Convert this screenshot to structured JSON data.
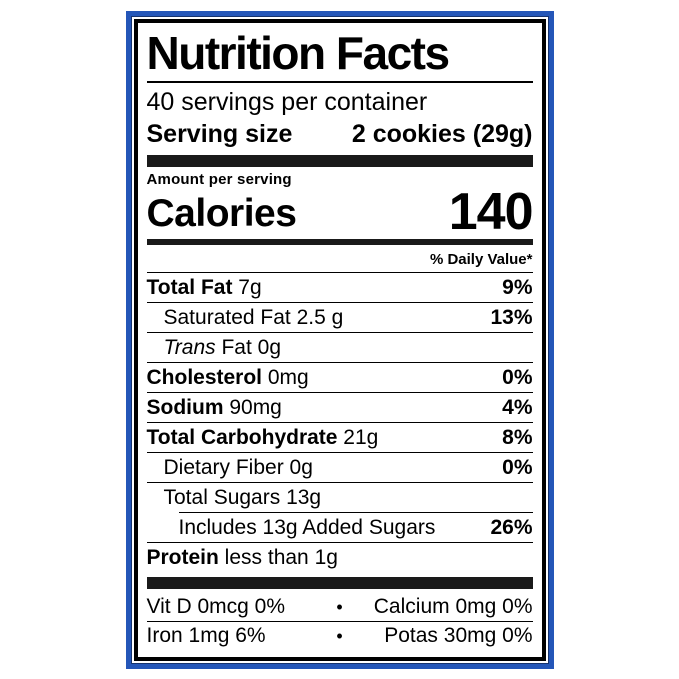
{
  "label": {
    "title": "Nutrition Facts",
    "servings_per_container": "40 servings per container",
    "serving_size": {
      "label": "Serving size",
      "value": "2 cookies (29g)"
    },
    "calories": {
      "eyebrow": "Amount per serving",
      "label": "Calories",
      "value": "140"
    },
    "daily_value_header": "% Daily Value*",
    "rows": [
      {
        "bold": "Total Fat",
        "rest": " 7g",
        "dv": "9%"
      },
      {
        "bold": "",
        "rest": "Saturated Fat 2.5 g",
        "dv": "13%"
      },
      {
        "italic": "Trans",
        "rest": " Fat 0g",
        "dv": ""
      },
      {
        "bold": "Cholesterol",
        "rest": " 0mg",
        "dv": "0%"
      },
      {
        "bold": "Sodium",
        "rest": " 90mg",
        "dv": "4%"
      },
      {
        "bold": "Total Carbohydrate",
        "rest": " 21g",
        "dv": "8%"
      },
      {
        "bold": "",
        "rest": "Dietary Fiber 0g",
        "dv": "0%"
      },
      {
        "bold": "",
        "rest": "Total Sugars 13g",
        "dv": ""
      },
      {
        "bold": "",
        "rest": "Includes 13g Added Sugars",
        "dv": "26%"
      },
      {
        "bold": "Protein",
        "rest": " less than 1g",
        "dv": ""
      }
    ],
    "micronutrients": {
      "bullet": "•",
      "row1": {
        "left": "Vit D 0mcg 0%",
        "right": "Calcium 0mg 0%"
      },
      "row2": {
        "left": "Iron 1mg 6%",
        "right": "Potas 30mg 0%"
      }
    },
    "colors": {
      "border_blue": "#2456b8",
      "ink": "#000000"
    }
  }
}
